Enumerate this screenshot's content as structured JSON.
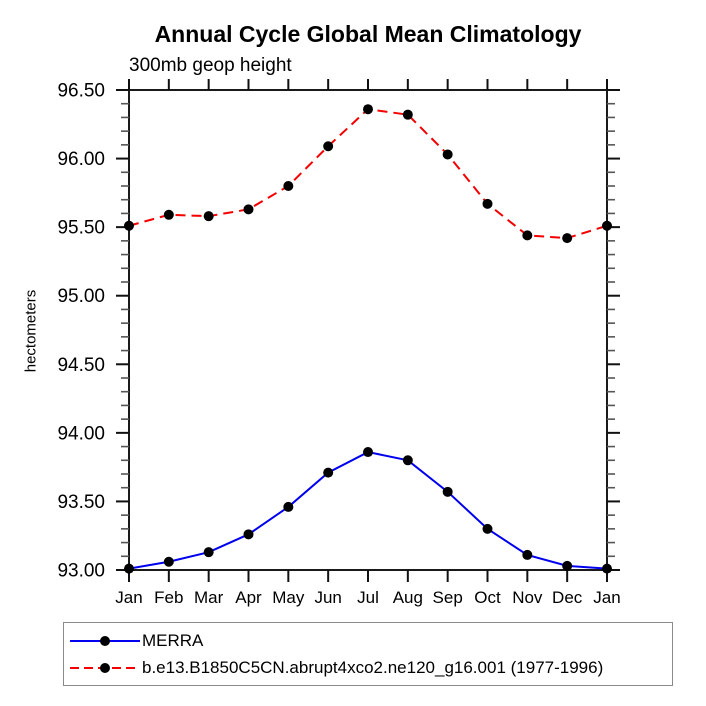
{
  "page": {
    "background": "#ffffff"
  },
  "chart_data": {
    "type": "line",
    "title": "Annual Cycle Global Mean Climatology",
    "subtitle": "300mb geop height",
    "ylabel": "hectometers",
    "xlabel": "",
    "categories": [
      "Jan",
      "Feb",
      "Mar",
      "Apr",
      "May",
      "Jun",
      "Jul",
      "Aug",
      "Sep",
      "Oct",
      "Nov",
      "Dec",
      "Jan"
    ],
    "ylim": [
      93.0,
      96.5
    ],
    "ytick_step": 0.5,
    "yminor_step": 0.1,
    "ytick_labels": [
      "93.00",
      "93.50",
      "94.00",
      "94.50",
      "95.00",
      "95.50",
      "96.00",
      "96.50"
    ],
    "grid": false,
    "legend": {
      "position": "bottom-left",
      "border": true
    },
    "series": [
      {
        "name": "MERRA",
        "color": "#0000ee",
        "line_style": "solid",
        "marker": "filled-circle",
        "marker_color": "#000000",
        "values": [
          93.01,
          93.06,
          93.13,
          93.26,
          93.46,
          93.71,
          93.86,
          93.8,
          93.57,
          93.3,
          93.11,
          93.03,
          93.01
        ]
      },
      {
        "name": "b.e13.B1850C5CN.abrupt4xco2.ne120_g16.001 (1977-1996)",
        "color": "#f40000",
        "line_style": "dashed",
        "marker": "filled-circle",
        "marker_color": "#000000",
        "values": [
          95.51,
          95.59,
          95.58,
          95.63,
          95.8,
          96.09,
          96.36,
          96.32,
          96.03,
          95.67,
          95.44,
          95.42,
          95.51
        ]
      }
    ]
  }
}
